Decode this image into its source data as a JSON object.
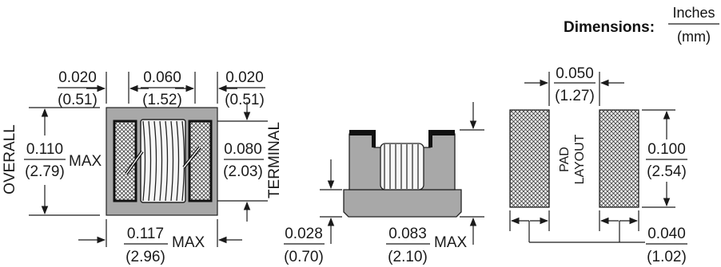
{
  "legend": {
    "label": "Dimensions:",
    "unit_top": "Inches",
    "unit_bottom": "(mm)"
  },
  "top_view": {
    "dim_left": {
      "inch": "0.020",
      "mm": "(0.51)"
    },
    "dim_center": {
      "inch": "0.060",
      "mm": "(1.52)"
    },
    "dim_right": {
      "inch": "0.020",
      "mm": "(0.51)"
    },
    "overall": {
      "label": "OVERALL",
      "inch": "0.110",
      "mm": "(2.79)",
      "suffix": "MAX"
    },
    "terminal": {
      "label": "TERMINAL",
      "inch": "0.080",
      "mm": "(2.03)"
    },
    "bottom": {
      "inch": "0.117",
      "mm": "(2.96)",
      "suffix": "MAX"
    }
  },
  "side_view": {
    "height_dim": {
      "inch": "0.028",
      "mm": "(0.70)"
    },
    "width_dim": {
      "inch": "0.083",
      "mm": "(2.10)",
      "suffix": "MAX"
    }
  },
  "pad_layout": {
    "label_line1": "PAD",
    "label_line2": "LAYOUT",
    "top": {
      "inch": "0.050",
      "mm": "(1.27)"
    },
    "right": {
      "inch": "0.100",
      "mm": "(2.54)"
    },
    "bottom": {
      "inch": "0.040",
      "mm": "(1.02)"
    }
  }
}
